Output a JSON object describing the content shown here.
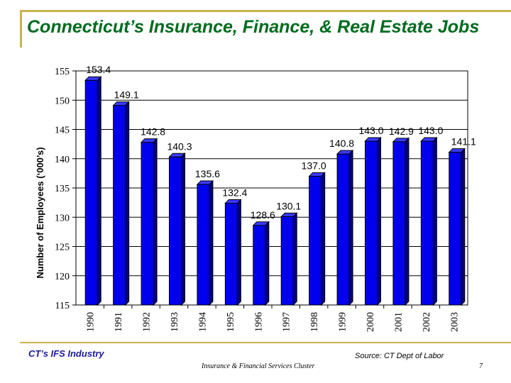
{
  "slide": {
    "title": "Connecticut’s Insurance, Finance, & Real Estate Jobs",
    "footer_left": "CT’s IFS Industry",
    "footer_source": "Source: CT Dept of Labor",
    "footer_center": "Insurance & Financial Services Cluster",
    "page_number": "7"
  },
  "colors": {
    "title": "#006b1f",
    "accent_rule": "#c8b44a",
    "bar_front": "#0000ee",
    "bar_side": "#000080",
    "bar_top": "#3a3aff",
    "footer_left": "#1a1a99"
  },
  "chart_data": {
    "type": "bar",
    "categories": [
      "1990",
      "1991",
      "1992",
      "1993",
      "1994",
      "1995",
      "1996",
      "1997",
      "1998",
      "1999",
      "2000",
      "2001",
      "2002",
      "2003"
    ],
    "values": [
      153.4,
      149.1,
      142.8,
      140.3,
      135.6,
      132.4,
      128.6,
      130.1,
      137.0,
      140.8,
      143.0,
      142.9,
      143.0,
      141.1
    ],
    "data_labels": [
      "153.4",
      "149.1",
      "142.8",
      "140.3",
      "135.6",
      "132.4",
      "128.6",
      "130.1",
      "137.0",
      "140.8",
      "143.0",
      "142.9",
      "143.0",
      "141.1"
    ],
    "yticks": [
      "115",
      "120",
      "125",
      "130",
      "135",
      "140",
      "145",
      "150",
      "155"
    ],
    "ylim": [
      115,
      155
    ],
    "ylabel": "Number of Employees  (‘000’s)",
    "xlabel": "",
    "grid": true,
    "legend": "none"
  }
}
